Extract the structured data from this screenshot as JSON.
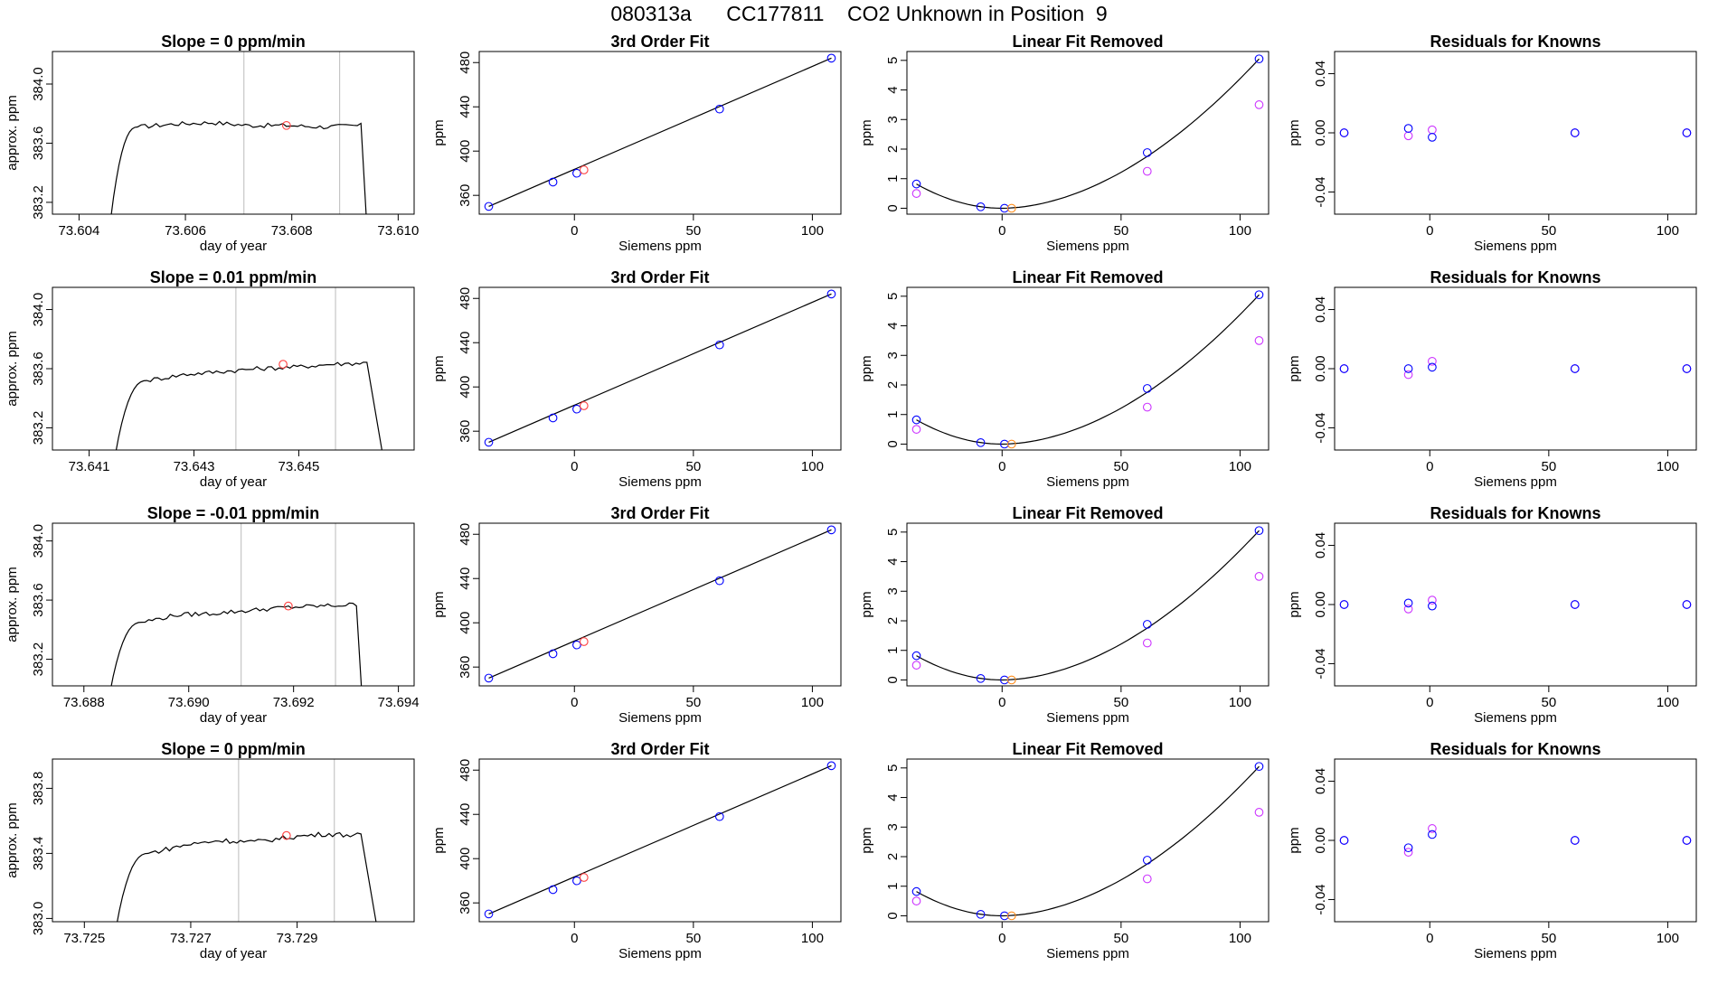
{
  "header": {
    "run_id": "080313a",
    "cylinder_id": "CC177811",
    "description": "CO2 Unknown in Position  9"
  },
  "colors": {
    "line": "#000000",
    "known": "#0000ff",
    "unknown": "#ff4040",
    "orange": "#ff8c1a",
    "residual2": "#cc33ff",
    "vline": "#bbbbbb"
  },
  "chart_data": [
    {
      "type": "line",
      "title": "Slope =  0  ppm/min",
      "xlabel": "day of year",
      "ylabel": "approx. ppm",
      "xlim": [
        73.6035,
        73.6103
      ],
      "ylim": [
        383.12,
        384.22
      ],
      "xticks": [
        73.604,
        73.606,
        73.608,
        73.61
      ],
      "xtick_labels": [
        "73.604",
        "73.606",
        "73.608",
        "73.610"
      ],
      "yticks": [
        383.2,
        383.6,
        384.0
      ],
      "ytick_labels": [
        "383.2",
        "383.6",
        "384.0"
      ],
      "vlines": [
        73.6071,
        73.6089
      ],
      "trace": {
        "x_start": 73.6046,
        "x_plateau": 73.6051,
        "x_drop": 73.6093,
        "x_end": 73.6094,
        "y_base": 383.1,
        "y_level": [
          383.71,
          383.73,
          383.74,
          383.72,
          383.72,
          383.71,
          383.72
        ],
        "noise": 0.015
      },
      "marker": {
        "x": 73.6079,
        "y": 383.72
      }
    },
    {
      "type": "line",
      "title": "Slope =  0.01  ppm/min",
      "xlabel": "day of year",
      "ylabel": "approx. ppm",
      "xlim": [
        73.6403,
        73.6472
      ],
      "ylim": [
        383.05,
        384.15
      ],
      "xticks": [
        73.641,
        73.643,
        73.645
      ],
      "xtick_labels": [
        "73.641",
        "73.643",
        "73.645"
      ],
      "yticks": [
        383.2,
        383.6,
        384.0
      ],
      "ytick_labels": [
        "383.2",
        "383.6",
        "384.0"
      ],
      "vlines": [
        73.6438,
        73.6457
      ],
      "trace": {
        "x_start": 73.6415,
        "x_plateau": 73.6421,
        "x_drop": 73.6463,
        "x_end": 73.6466,
        "y_base": 383.02,
        "y_level": [
          383.52,
          383.56,
          383.58,
          383.6,
          383.61,
          383.63,
          383.64
        ],
        "noise": 0.015
      },
      "marker": {
        "x": 73.6447,
        "y": 383.63
      }
    },
    {
      "type": "line",
      "title": "Slope =  -0.01  ppm/min",
      "xlabel": "day of year",
      "ylabel": "approx. ppm",
      "xlim": [
        73.6874,
        73.6943
      ],
      "ylim": [
        383.02,
        384.12
      ],
      "xticks": [
        73.688,
        73.69,
        73.692,
        73.694
      ],
      "xtick_labels": [
        "73.688",
        "73.690",
        "73.692",
        "73.694"
      ],
      "yticks": [
        383.2,
        383.6,
        384.0
      ],
      "ytick_labels": [
        "383.2",
        "383.6",
        "384.0"
      ],
      "vlines": [
        73.691,
        73.6928
      ],
      "trace": {
        "x_start": 73.6885,
        "x_plateau": 73.6891,
        "x_drop": 73.6932,
        "x_end": 73.6933,
        "y_base": 382.98,
        "y_level": [
          383.45,
          383.5,
          383.51,
          383.53,
          383.55,
          383.56,
          383.57
        ],
        "noise": 0.015
      },
      "marker": {
        "x": 73.6919,
        "y": 383.56
      }
    },
    {
      "type": "line",
      "title": "Slope =  0  ppm/min",
      "xlabel": "day of year",
      "ylabel": "approx. ppm",
      "xlim": [
        73.7244,
        73.7312
      ],
      "ylim": [
        382.98,
        383.98
      ],
      "xticks": [
        73.725,
        73.727,
        73.729
      ],
      "xtick_labels": [
        "73.725",
        "73.727",
        "73.729"
      ],
      "yticks": [
        383.0,
        383.4,
        383.8
      ],
      "ytick_labels": [
        "383.0",
        "383.4",
        "383.8"
      ],
      "vlines": [
        73.7279,
        73.7297
      ],
      "trace": {
        "x_start": 73.7256,
        "x_plateau": 73.7262,
        "x_drop": 73.7302,
        "x_end": 73.7305,
        "y_base": 382.95,
        "y_level": [
          383.4,
          383.45,
          383.48,
          383.47,
          383.5,
          383.52,
          383.51
        ],
        "noise": 0.015
      },
      "marker": {
        "x": 73.7288,
        "y": 383.51
      }
    }
  ],
  "fit_panels": {
    "fit": {
      "title": "3rd Order Fit",
      "xlabel": "Siemens ppm",
      "ylabel": "ppm",
      "xlim": [
        -40,
        112
      ],
      "ylim": [
        343,
        490
      ],
      "xticks": [
        0,
        50,
        100
      ],
      "xtick_labels": [
        "0",
        "50",
        "100"
      ],
      "yticks": [
        360,
        400,
        440,
        480
      ],
      "ytick_labels": [
        "360",
        "400",
        "440",
        "480"
      ],
      "line": [
        [
          -36,
          350
        ],
        [
          108,
          484
        ]
      ],
      "knowns": [
        [
          -36,
          350
        ],
        [
          -9,
          372
        ],
        [
          1,
          380
        ],
        [
          61,
          438
        ],
        [
          108,
          484
        ]
      ],
      "unknown": [
        4,
        383
      ]
    },
    "linear_removed": {
      "title": "Linear Fit Removed",
      "xlabel": "Siemens ppm",
      "ylabel": "ppm",
      "xlim": [
        -40,
        112
      ],
      "ylim": [
        -0.2,
        5.3
      ],
      "xticks": [
        0,
        50,
        100
      ],
      "xtick_labels": [
        "0",
        "50",
        "100"
      ],
      "yticks": [
        0,
        1,
        2,
        3,
        4,
        5
      ],
      "ytick_labels": [
        "0",
        "1",
        "2",
        "3",
        "4",
        "5"
      ],
      "curve_x": [
        -36,
        108
      ],
      "knowns": [
        [
          -36,
          0.82
        ],
        [
          -9,
          0.05
        ],
        [
          1,
          0.0
        ],
        [
          61,
          1.88
        ],
        [
          108,
          5.05
        ]
      ],
      "residuals": [
        [
          -36,
          0.5
        ],
        [
          61,
          1.25
        ],
        [
          108,
          3.5
        ]
      ],
      "unknown": [
        4,
        0.0
      ]
    },
    "residuals": {
      "title": "Residuals for Knowns",
      "xlabel": "Siemens ppm",
      "ylabel": "ppm",
      "xlim": [
        -40,
        112
      ],
      "ylim": [
        -0.055,
        0.055
      ],
      "xticks": [
        0,
        50,
        100
      ],
      "xtick_labels": [
        "0",
        "50",
        "100"
      ],
      "yticks": [
        -0.04,
        0.0,
        0.04
      ],
      "ytick_labels": [
        "-0.04",
        "0.00",
        "0.04"
      ],
      "rows": [
        {
          "known": [
            [
              -36,
              0.0
            ],
            [
              -9,
              0.003
            ],
            [
              1,
              -0.003
            ],
            [
              61,
              0.0
            ],
            [
              108,
              0.0
            ]
          ],
          "other": [
            [
              -36,
              0.0
            ],
            [
              -9,
              -0.002
            ],
            [
              1,
              0.002
            ],
            [
              61,
              0.0
            ],
            [
              108,
              0.0
            ]
          ]
        },
        {
          "known": [
            [
              -36,
              0.0
            ],
            [
              -9,
              0.0
            ],
            [
              1,
              0.001
            ],
            [
              61,
              0.0
            ],
            [
              108,
              0.0
            ]
          ],
          "other": [
            [
              -36,
              0.0
            ],
            [
              -9,
              -0.004
            ],
            [
              1,
              0.005
            ],
            [
              61,
              0.0
            ],
            [
              108,
              0.0
            ]
          ]
        },
        {
          "known": [
            [
              -36,
              0.0
            ],
            [
              -9,
              0.001
            ],
            [
              1,
              -0.001
            ],
            [
              61,
              0.0
            ],
            [
              108,
              0.0
            ]
          ],
          "other": [
            [
              -36,
              0.0
            ],
            [
              -9,
              -0.003
            ],
            [
              1,
              0.003
            ],
            [
              61,
              0.0
            ],
            [
              108,
              0.0
            ]
          ]
        },
        {
          "known": [
            [
              -36,
              0.0
            ],
            [
              -9,
              -0.005
            ],
            [
              1,
              0.004
            ],
            [
              61,
              0.0
            ],
            [
              108,
              0.0
            ]
          ],
          "other": [
            [
              -36,
              0.0
            ],
            [
              -9,
              -0.008
            ],
            [
              1,
              0.008
            ],
            [
              61,
              0.0
            ],
            [
              108,
              0.0
            ]
          ]
        }
      ]
    }
  }
}
